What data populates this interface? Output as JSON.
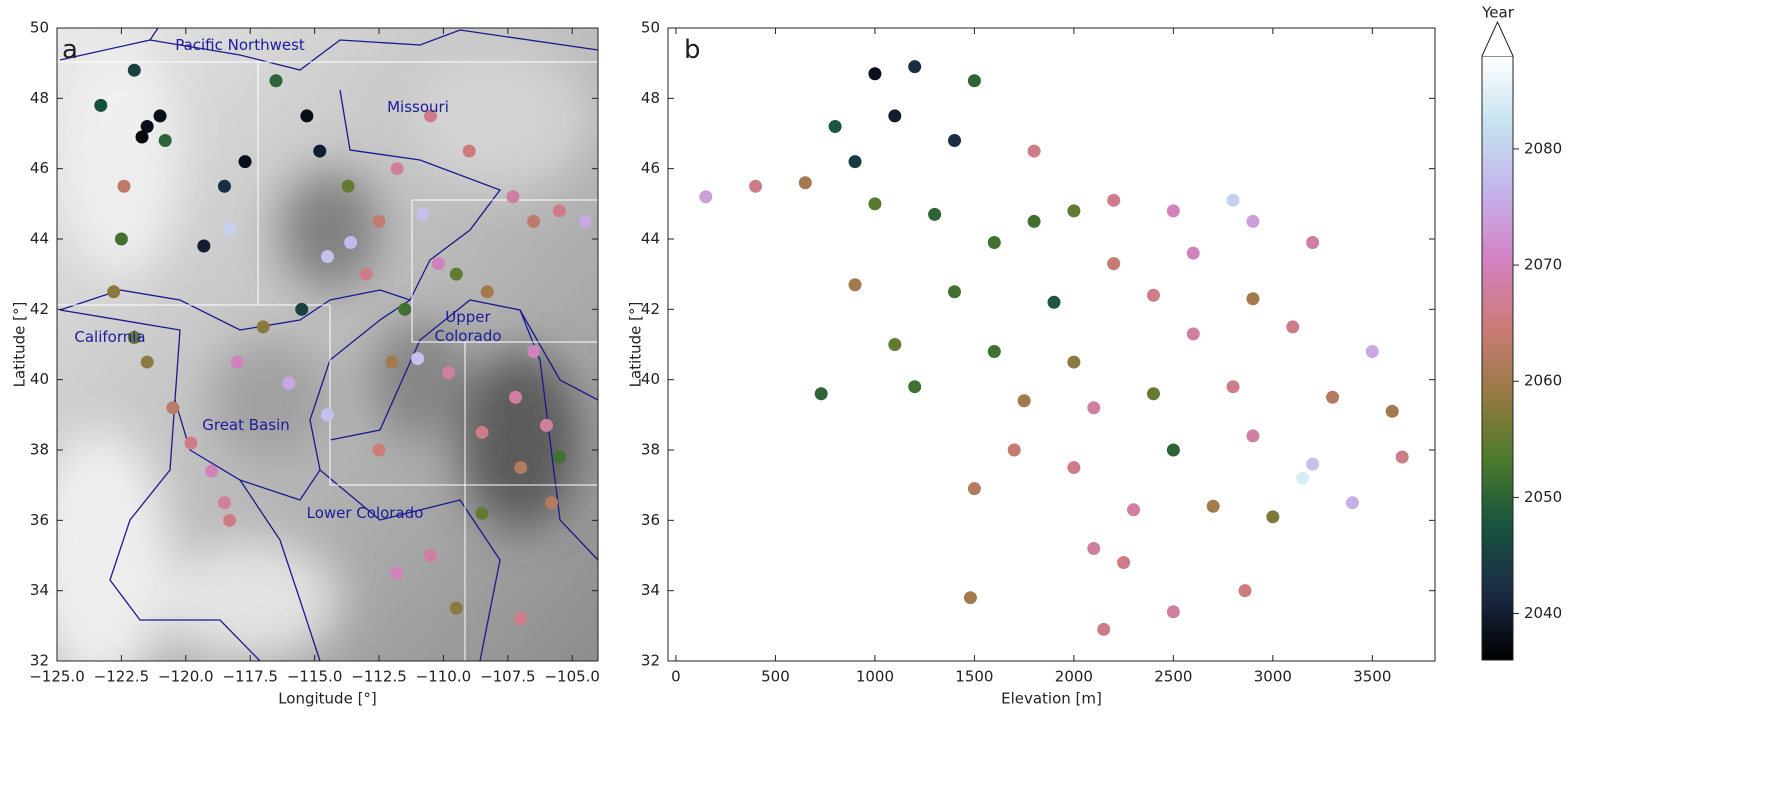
{
  "chart_data": [
    {
      "type": "scatter",
      "panel": "a",
      "xlabel": "Longitude [°]",
      "ylabel": "Latitude [°]",
      "annotations": [
        "Pacific Northwest",
        "Missouri",
        "California",
        "Great Basin",
        "Upper Colorado",
        "Lower Colorado"
      ],
      "xlim": [
        -125,
        -104
      ],
      "ylim": [
        32,
        50
      ],
      "xticks": [
        {
          "value": -125,
          "label": "−125.0"
        },
        {
          "value": -122.5,
          "label": "−122.5"
        },
        {
          "value": -120,
          "label": "−120.0"
        },
        {
          "value": -117.5,
          "label": "−117.5"
        },
        {
          "value": -115,
          "label": "−115.0"
        },
        {
          "value": -112.5,
          "label": "−112.5"
        },
        {
          "value": -110,
          "label": "−110.0"
        },
        {
          "value": -107.5,
          "label": "−107.5"
        },
        {
          "value": -105,
          "label": "−105.0"
        }
      ],
      "yticks": [
        32,
        34,
        36,
        38,
        40,
        42,
        44,
        46,
        48,
        50
      ],
      "x": [
        -123.3,
        -122,
        -121.5,
        -121.7,
        -121,
        -120.8,
        -122.4,
        -122.5,
        -122.8,
        -122,
        -121.5,
        -120.5,
        -119.8,
        -119,
        -118.5,
        -118.3,
        -119.3,
        -118.5,
        -117.7,
        -116.5,
        -115.3,
        -114.8,
        -113.7,
        -112.5,
        -111.8,
        -110.5,
        -109,
        -107.3,
        -106.5,
        -105.5,
        -104.5,
        -110.8,
        -110.2,
        -109.5,
        -108.3,
        -111.5,
        -113,
        -114.5,
        -115.5,
        -117,
        -118,
        -116,
        -114.5,
        -112.5,
        -112,
        -111,
        -109.8,
        -108.5,
        -107.2,
        -106.5,
        -106,
        -105.5,
        -107,
        -108.5,
        -110.5,
        -111.8,
        -109.5,
        -107,
        -105.8,
        -118.3,
        -113.6
      ],
      "values": [
        47.8,
        48.8,
        47.2,
        46.9,
        47.5,
        46.8,
        45.5,
        44,
        42.5,
        41.2,
        40.5,
        39.2,
        38.2,
        37.4,
        36.5,
        36,
        43.8,
        45.5,
        46.2,
        48.5,
        47.5,
        46.5,
        45.5,
        44.5,
        46,
        47.5,
        46.5,
        45.2,
        44.5,
        44.8,
        44.5,
        44.7,
        43.3,
        43,
        42.5,
        42,
        43,
        43.5,
        42,
        41.5,
        40.5,
        39.9,
        39,
        38,
        40.5,
        40.6,
        40.2,
        38.5,
        39.5,
        40.8,
        38.7,
        37.8,
        37.5,
        36.2,
        35,
        34.5,
        33.5,
        33.2,
        36.5,
        44.3,
        43.9
      ],
      "c": [
        2047,
        2045,
        2038,
        2037,
        2038,
        2050,
        2063,
        2052,
        2058,
        2055,
        2058,
        2063,
        2066,
        2070,
        2068,
        2066,
        2040,
        2042,
        2038,
        2050,
        2038,
        2040,
        2055,
        2064,
        2068,
        2066,
        2065,
        2068,
        2063,
        2066,
        2075,
        2078,
        2070,
        2055,
        2060,
        2052,
        2066,
        2078,
        2045,
        2058,
        2070,
        2075,
        2078,
        2065,
        2060,
        2078,
        2068,
        2066,
        2068,
        2070,
        2068,
        2052,
        2062,
        2055,
        2068,
        2070,
        2058,
        2066,
        2062,
        2080,
        2077
      ]
    },
    {
      "type": "scatter",
      "panel": "b",
      "xlabel": "Elevation [m]",
      "ylabel": "Latitude [°]",
      "xlim": [
        -40,
        3815
      ],
      "ylim": [
        32,
        50
      ],
      "xticks": [
        0,
        500,
        1000,
        1500,
        2000,
        2500,
        3000,
        3500
      ],
      "yticks": [
        32,
        34,
        36,
        38,
        40,
        42,
        44,
        46,
        48,
        50
      ],
      "x": [
        1000,
        1200,
        1500,
        800,
        1100,
        1400,
        900,
        150,
        400,
        650,
        1000,
        1300,
        1800,
        2000,
        2200,
        2500,
        2800,
        1600,
        2200,
        2600,
        3200,
        900,
        1400,
        1900,
        2400,
        2900,
        1100,
        1600,
        2000,
        2600,
        3100,
        3500,
        730,
        1200,
        1750,
        2100,
        2400,
        2800,
        3300,
        3600,
        1700,
        2000,
        2500,
        2900,
        3200,
        3400,
        3650,
        1500,
        2300,
        2700,
        3000,
        2100,
        2250,
        2500,
        2150,
        1480,
        2860,
        3150,
        2900,
        1800
      ],
      "values": [
        48.7,
        48.9,
        48.5,
        47.2,
        47.5,
        46.8,
        46.2,
        45.2,
        45.5,
        45.6,
        45,
        44.7,
        44.5,
        44.8,
        45.1,
        44.8,
        45.1,
        43.9,
        43.3,
        43.6,
        43.9,
        42.7,
        42.5,
        42.2,
        42.4,
        42.3,
        41,
        40.8,
        40.5,
        41.3,
        41.5,
        40.8,
        39.6,
        39.8,
        39.4,
        39.2,
        39.6,
        39.8,
        39.5,
        39.1,
        38,
        37.5,
        38,
        38.4,
        37.6,
        36.5,
        37.8,
        36.9,
        36.3,
        36.4,
        36.1,
        35.2,
        34.8,
        33.4,
        32.9,
        33.8,
        34,
        37.2,
        44.5,
        46.5
      ],
      "c": [
        2038,
        2042,
        2050,
        2048,
        2040,
        2042,
        2044,
        2074,
        2066,
        2060,
        2054,
        2050,
        2052,
        2055,
        2066,
        2070,
        2080,
        2052,
        2064,
        2070,
        2068,
        2060,
        2052,
        2048,
        2066,
        2060,
        2055,
        2052,
        2058,
        2068,
        2066,
        2075,
        2050,
        2052,
        2060,
        2068,
        2055,
        2066,
        2062,
        2060,
        2064,
        2066,
        2050,
        2068,
        2078,
        2076,
        2066,
        2062,
        2068,
        2060,
        2057,
        2068,
        2066,
        2068,
        2066,
        2060,
        2065,
        2084,
        2074,
        2066
      ]
    }
  ],
  "colorbar": {
    "label": "Year",
    "lim": [
      2036,
      2088
    ],
    "ticks": [
      2040,
      2050,
      2060,
      2070,
      2080
    ],
    "colormap": [
      "#000000",
      "#1b2a45",
      "#17543f",
      "#4d7a2c",
      "#9a7a45",
      "#cd7b7a",
      "#d283c4",
      "#c4b4ec",
      "#c6e3ef",
      "#ffffff"
    ]
  }
}
